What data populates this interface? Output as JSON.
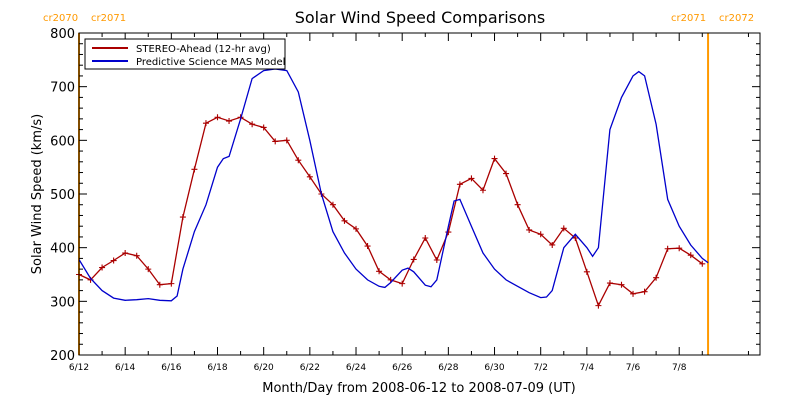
{
  "chart_data": {
    "type": "line",
    "title": "Solar Wind Speed Comparisons",
    "xlabel": "Month/Day from 2008-06-12 to 2008-07-09 (UT)",
    "ylabel": "Solar Wind Speed (km/s)",
    "xlim": [
      "2008-06-12 00:00",
      "2008-07-11 12:00"
    ],
    "ylim": [
      200,
      800
    ],
    "x_ticks": [
      {
        "date": "2008-06-12",
        "label": "6/12"
      },
      {
        "date": "2008-06-14",
        "label": "6/14"
      },
      {
        "date": "2008-06-16",
        "label": "6/16"
      },
      {
        "date": "2008-06-18",
        "label": "6/18"
      },
      {
        "date": "2008-06-20",
        "label": "6/20"
      },
      {
        "date": "2008-06-22",
        "label": "6/22"
      },
      {
        "date": "2008-06-24",
        "label": "6/24"
      },
      {
        "date": "2008-06-26",
        "label": "6/26"
      },
      {
        "date": "2008-06-28",
        "label": "6/28"
      },
      {
        "date": "2008-06-30",
        "label": "6/30"
      },
      {
        "date": "2008-07-02",
        "label": "7/2"
      },
      {
        "date": "2008-07-04",
        "label": "7/4"
      },
      {
        "date": "2008-07-06",
        "label": "7/6"
      },
      {
        "date": "2008-07-08",
        "label": "7/8"
      }
    ],
    "y_ticks": [
      200,
      300,
      400,
      500,
      600,
      700,
      800
    ],
    "grid": false,
    "legend_position": "top-left",
    "series": [
      {
        "name": "STEREO-Ahead (12-hr avg)",
        "color": "#aa0000",
        "marker": "plus",
        "points": [
          [
            "2008-06-12 00:00",
            350
          ],
          [
            "2008-06-12 12:00",
            340
          ],
          [
            "2008-06-13 00:00",
            363
          ],
          [
            "2008-06-13 12:00",
            376
          ],
          [
            "2008-06-14 00:00",
            390
          ],
          [
            "2008-06-14 12:00",
            385
          ],
          [
            "2008-06-15 00:00",
            360
          ],
          [
            "2008-06-15 12:00",
            331
          ],
          [
            "2008-06-16 00:00",
            333
          ],
          [
            "2008-06-16 12:00",
            457
          ],
          [
            "2008-06-17 00:00",
            546
          ],
          [
            "2008-06-17 12:00",
            632
          ],
          [
            "2008-06-18 00:00",
            643
          ],
          [
            "2008-06-18 12:00",
            636
          ],
          [
            "2008-06-19 00:00",
            643
          ],
          [
            "2008-06-19 12:00",
            630
          ],
          [
            "2008-06-20 00:00",
            624
          ],
          [
            "2008-06-20 12:00",
            598
          ],
          [
            "2008-06-21 00:00",
            600
          ],
          [
            "2008-06-21 12:00",
            563
          ],
          [
            "2008-06-22 00:00",
            532
          ],
          [
            "2008-06-22 12:00",
            500
          ],
          [
            "2008-06-23 00:00",
            480
          ],
          [
            "2008-06-23 12:00",
            450
          ],
          [
            "2008-06-24 00:00",
            435
          ],
          [
            "2008-06-24 12:00",
            403
          ],
          [
            "2008-06-25 00:00",
            356
          ],
          [
            "2008-06-25 12:00",
            340
          ],
          [
            "2008-06-26 00:00",
            333
          ],
          [
            "2008-06-26 12:00",
            378
          ],
          [
            "2008-06-27 00:00",
            418
          ],
          [
            "2008-06-27 12:00",
            377
          ],
          [
            "2008-06-28 00:00",
            429
          ],
          [
            "2008-06-28 12:00",
            518
          ],
          [
            "2008-06-29 00:00",
            529
          ],
          [
            "2008-06-29 12:00",
            507
          ],
          [
            "2008-06-30 00:00",
            566
          ],
          [
            "2008-06-30 12:00",
            538
          ],
          [
            "2008-07-01 00:00",
            480
          ],
          [
            "2008-07-01 12:00",
            433
          ],
          [
            "2008-07-02 00:00",
            425
          ],
          [
            "2008-07-02 12:00",
            405
          ],
          [
            "2008-07-03 00:00",
            436
          ],
          [
            "2008-07-03 12:00",
            418
          ],
          [
            "2008-07-04 00:00",
            355
          ],
          [
            "2008-07-04 12:00",
            292
          ],
          [
            "2008-07-05 00:00",
            334
          ],
          [
            "2008-07-05 12:00",
            331
          ],
          [
            "2008-07-06 00:00",
            314
          ],
          [
            "2008-07-06 12:00",
            318
          ],
          [
            "2008-07-07 00:00",
            344
          ],
          [
            "2008-07-07 12:00",
            398
          ],
          [
            "2008-07-08 00:00",
            399
          ],
          [
            "2008-07-08 12:00",
            386
          ],
          [
            "2008-07-09 00:00",
            370
          ]
        ]
      },
      {
        "name": "Predictive Science MAS Model",
        "color": "#0000cc",
        "marker": "none",
        "points": [
          [
            "2008-06-12 00:00",
            378
          ],
          [
            "2008-06-12 12:00",
            343
          ],
          [
            "2008-06-13 00:00",
            320
          ],
          [
            "2008-06-13 12:00",
            306
          ],
          [
            "2008-06-14 00:00",
            302
          ],
          [
            "2008-06-14 12:00",
            303
          ],
          [
            "2008-06-15 00:00",
            305
          ],
          [
            "2008-06-15 12:00",
            302
          ],
          [
            "2008-06-16 00:00",
            301
          ],
          [
            "2008-06-16 06:00",
            310
          ],
          [
            "2008-06-16 12:00",
            360
          ],
          [
            "2008-06-17 00:00",
            430
          ],
          [
            "2008-06-17 12:00",
            480
          ],
          [
            "2008-06-18 00:00",
            550
          ],
          [
            "2008-06-18 06:00",
            566
          ],
          [
            "2008-06-18 12:00",
            570
          ],
          [
            "2008-06-19 00:00",
            640
          ],
          [
            "2008-06-19 12:00",
            715
          ],
          [
            "2008-06-20 00:00",
            730
          ],
          [
            "2008-06-20 12:00",
            733
          ],
          [
            "2008-06-21 00:00",
            730
          ],
          [
            "2008-06-21 12:00",
            690
          ],
          [
            "2008-06-22 00:00",
            600
          ],
          [
            "2008-06-22 12:00",
            500
          ],
          [
            "2008-06-23 00:00",
            430
          ],
          [
            "2008-06-23 12:00",
            390
          ],
          [
            "2008-06-24 00:00",
            360
          ],
          [
            "2008-06-24 12:00",
            340
          ],
          [
            "2008-06-25 00:00",
            328
          ],
          [
            "2008-06-25 06:00",
            326
          ],
          [
            "2008-06-25 12:00",
            335
          ],
          [
            "2008-06-26 00:00",
            358
          ],
          [
            "2008-06-26 06:00",
            362
          ],
          [
            "2008-06-26 12:00",
            355
          ],
          [
            "2008-06-27 00:00",
            330
          ],
          [
            "2008-06-27 06:00",
            327
          ],
          [
            "2008-06-27 12:00",
            340
          ],
          [
            "2008-06-28 00:00",
            440
          ],
          [
            "2008-06-28 06:00",
            487
          ],
          [
            "2008-06-28 12:00",
            490
          ],
          [
            "2008-06-29 00:00",
            440
          ],
          [
            "2008-06-29 12:00",
            390
          ],
          [
            "2008-06-30 00:00",
            360
          ],
          [
            "2008-06-30 12:00",
            340
          ],
          [
            "2008-07-01 00:00",
            328
          ],
          [
            "2008-07-01 12:00",
            316
          ],
          [
            "2008-07-02 00:00",
            307
          ],
          [
            "2008-07-02 06:00",
            308
          ],
          [
            "2008-07-02 12:00",
            320
          ],
          [
            "2008-07-03 00:00",
            400
          ],
          [
            "2008-07-03 12:00",
            425
          ],
          [
            "2008-07-04 00:00",
            400
          ],
          [
            "2008-07-04 06:00",
            384
          ],
          [
            "2008-07-04 12:00",
            400
          ],
          [
            "2008-07-05 00:00",
            620
          ],
          [
            "2008-07-05 12:00",
            680
          ],
          [
            "2008-07-06 00:00",
            720
          ],
          [
            "2008-07-06 06:00",
            728
          ],
          [
            "2008-07-06 12:00",
            720
          ],
          [
            "2008-07-07 00:00",
            630
          ],
          [
            "2008-07-07 12:00",
            490
          ],
          [
            "2008-07-08 00:00",
            440
          ],
          [
            "2008-07-08 12:00",
            405
          ],
          [
            "2008-07-09 00:00",
            380
          ],
          [
            "2008-07-09 06:00",
            372
          ]
        ]
      }
    ],
    "markers": [
      {
        "date": "2008-06-12 00:00",
        "labels": [
          "cr2070",
          "cr2071"
        ],
        "color": "#ff9900"
      },
      {
        "date": "2008-07-09 06:00",
        "labels": [
          "cr2071",
          "cr2072"
        ],
        "color": "#ff9900"
      }
    ]
  }
}
